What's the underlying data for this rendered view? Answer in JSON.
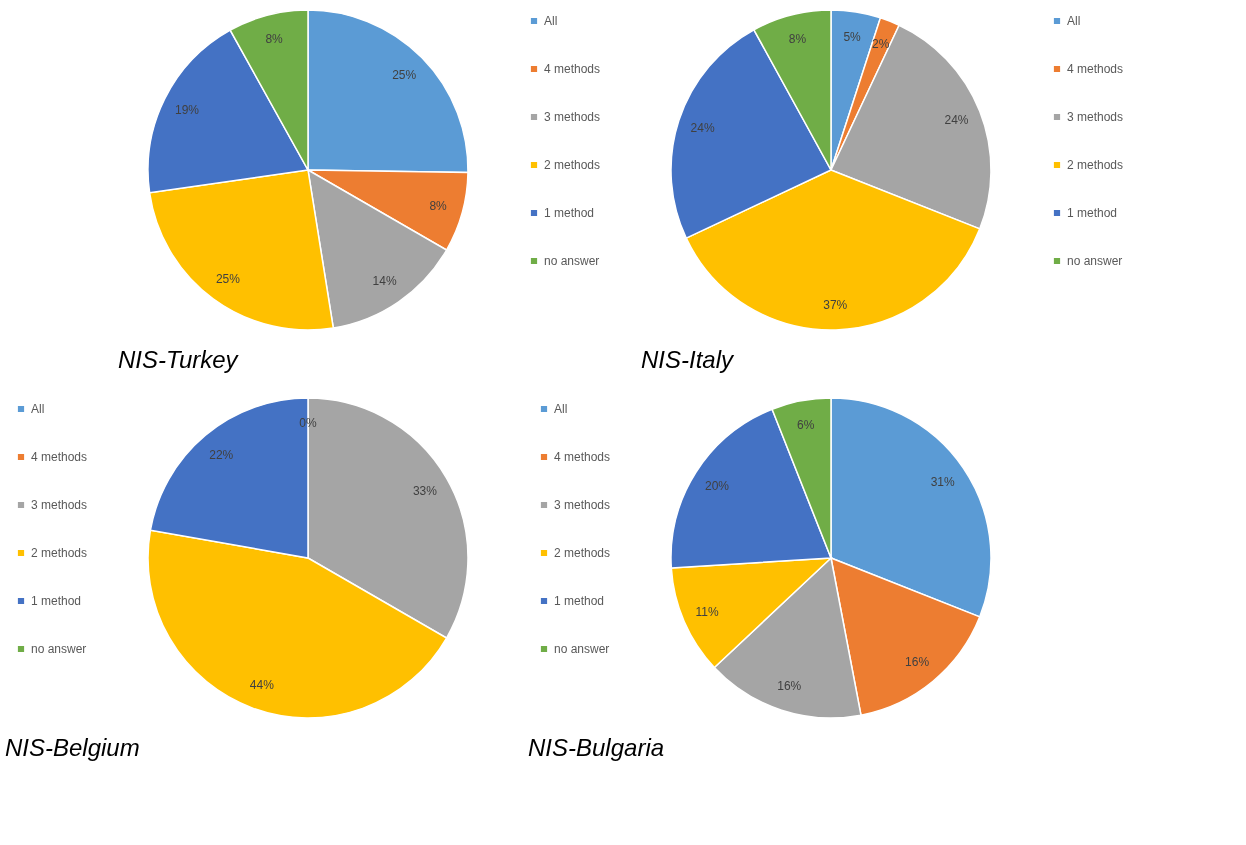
{
  "chart_data": [
    {
      "type": "pie",
      "title": "NIS-Turkey",
      "legend": "right",
      "categories": [
        "All",
        "4 methods",
        "3 methods",
        "2 methods",
        "1 method",
        "no answer"
      ],
      "values": [
        25,
        8,
        14,
        25,
        19,
        8
      ],
      "value_labels": [
        "25%",
        "8%",
        "14%",
        "25%",
        "19%",
        "8%"
      ],
      "colors": [
        "#5b9bd5",
        "#ed7d31",
        "#a5a5a5",
        "#ffc000",
        "#4472c4",
        "#70ad47"
      ]
    },
    {
      "type": "pie",
      "title": "NIS-Italy",
      "legend": "right",
      "categories": [
        "All",
        "4 methods",
        "3 methods",
        "2 methods",
        "1 method",
        "no answer"
      ],
      "values": [
        5,
        2,
        24,
        37,
        24,
        8
      ],
      "value_labels": [
        "5%",
        "2%",
        "24%",
        "37%",
        "24%",
        "8%"
      ],
      "colors": [
        "#5b9bd5",
        "#ed7d31",
        "#a5a5a5",
        "#ffc000",
        "#4472c4",
        "#70ad47"
      ]
    },
    {
      "type": "pie",
      "title": "NIS-Belgium",
      "legend": "left",
      "categories": [
        "All",
        "4 methods",
        "3 methods",
        "2 methods",
        "1 method",
        "no answer"
      ],
      "values": [
        0,
        null,
        33,
        44,
        22,
        null
      ],
      "value_labels": [
        "0%",
        null,
        "33%",
        "44%",
        "22%",
        null
      ],
      "colors": [
        "#5b9bd5",
        "#ed7d31",
        "#a5a5a5",
        "#ffc000",
        "#4472c4",
        "#70ad47"
      ]
    },
    {
      "type": "pie",
      "title": "NIS-Bulgaria",
      "legend": "left",
      "categories": [
        "All",
        "4 methods",
        "3 methods",
        "2 methods",
        "1 method",
        "no answer"
      ],
      "values": [
        31,
        16,
        16,
        11,
        20,
        6
      ],
      "value_labels": [
        "31%",
        "16%",
        "16%",
        "11%",
        "20%",
        "6%"
      ],
      "colors": [
        "#5b9bd5",
        "#ed7d31",
        "#a5a5a5",
        "#ffc000",
        "#4472c4",
        "#70ad47"
      ]
    }
  ]
}
